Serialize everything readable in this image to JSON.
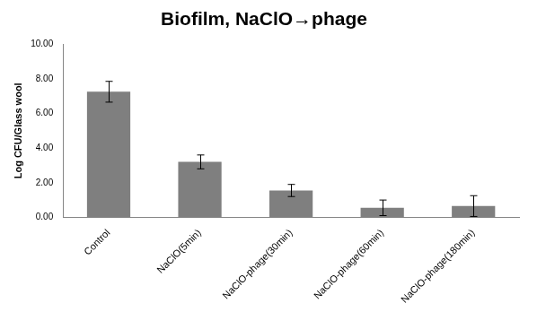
{
  "chart_data": {
    "type": "bar",
    "title": "Biofilm, NaClO→phage",
    "y_label": "Log CFU/Glass wool",
    "categories": [
      "Control",
      "NaClO(5min)",
      "NaClO-phage(30min)",
      "NaClO-phage(60min)",
      "NaClO-phage(180min)"
    ],
    "values": [
      7.25,
      3.2,
      1.55,
      0.55,
      0.65
    ],
    "errors": [
      0.6,
      0.4,
      0.35,
      0.45,
      0.6
    ],
    "color": "#7f7f7f",
    "ylim": [
      0,
      10
    ],
    "yticks": [
      {
        "value": 0,
        "label": "0.00"
      },
      {
        "value": 2,
        "label": "2.00"
      },
      {
        "value": 4,
        "label": "4.00"
      },
      {
        "value": 6,
        "label": "6.00"
      },
      {
        "value": 8,
        "label": "8.00"
      },
      {
        "value": 10,
        "label": "10.00"
      }
    ],
    "grid": false
  }
}
